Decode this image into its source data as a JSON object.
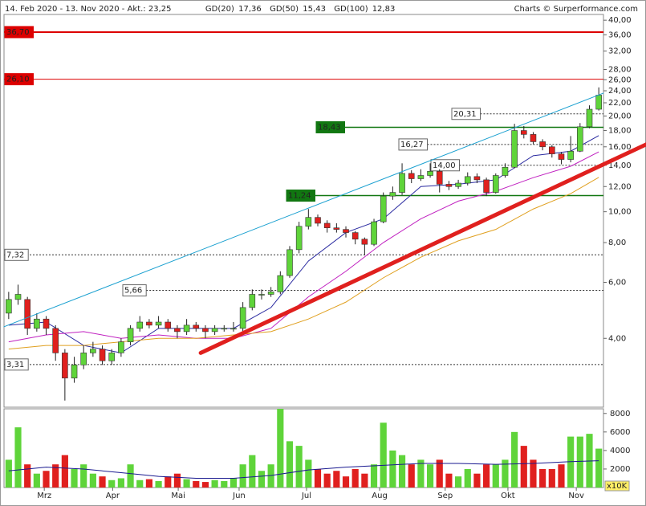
{
  "chart_data": {
    "type": "candlestick",
    "title": "14. Feb 2020 - 13. Nov 2020 - Akt.: 23,25",
    "source": "Charts © Surperformance.com",
    "log_scale": true,
    "grid": false,
    "up_color": "#5fd43a",
    "down_color": "#e0201e",
    "xlim": [
      -0.5,
      63.5
    ],
    "xticks": [
      {
        "value": 3.8,
        "label": "Mrz"
      },
      {
        "value": 11.1,
        "label": "Apr"
      },
      {
        "value": 18.1,
        "label": "Mai"
      },
      {
        "value": 24.6,
        "label": "Jun"
      },
      {
        "value": 31.8,
        "label": "Jul"
      },
      {
        "value": 39.6,
        "label": "Aug"
      },
      {
        "value": 46.6,
        "label": "Sep"
      },
      {
        "value": 53.3,
        "label": "Okt"
      },
      {
        "value": 60.6,
        "label": "Nov"
      }
    ],
    "ylim": [
      2.43,
      41.7
    ],
    "yticks": [
      {
        "value": 40,
        "label": "40,00"
      },
      {
        "value": 36,
        "label": "36,00"
      },
      {
        "value": 32,
        "label": "32,00"
      },
      {
        "value": 28,
        "label": "28,00"
      },
      {
        "value": 26,
        "label": "26,00"
      },
      {
        "value": 24,
        "label": "24,00"
      },
      {
        "value": 22,
        "label": "22,00"
      },
      {
        "value": 20,
        "label": "20,00"
      },
      {
        "value": 18,
        "label": "18,00"
      },
      {
        "value": 16,
        "label": "16,00"
      },
      {
        "value": 14,
        "label": "14,00"
      },
      {
        "value": 12,
        "label": "12,00"
      },
      {
        "value": 10,
        "label": "10,00"
      },
      {
        "value": 8,
        "label": "8,00"
      },
      {
        "value": 6,
        "label": "6,00"
      },
      {
        "value": 4,
        "label": "4,00"
      }
    ],
    "open": [
      4.8,
      5.3,
      5.3,
      4.3,
      4.6,
      4.3,
      3.6,
      3.0,
      3.3,
      3.6,
      3.7,
      3.4,
      3.6,
      3.9,
      4.3,
      4.5,
      4.4,
      4.5,
      4.3,
      4.2,
      4.4,
      4.3,
      4.2,
      4.3,
      4.3,
      4.3,
      5.0,
      5.5,
      5.5,
      5.6,
      6.3,
      7.6,
      9.0,
      9.6,
      9.2,
      8.9,
      8.8,
      8.6,
      8.2,
      7.9,
      9.3,
      11.2,
      11.5,
      13.2,
      12.7,
      13.0,
      13.4,
      12.2,
      12.0,
      12.3,
      12.9,
      12.6,
      11.5,
      13.0,
      13.8,
      18.0,
      17.5,
      16.6,
      16.0,
      15.2,
      14.6,
      15.5,
      18.5,
      21.0
    ],
    "high": [
      5.6,
      5.9,
      5.4,
      4.8,
      4.7,
      4.4,
      3.7,
      3.5,
      3.8,
      3.9,
      3.8,
      3.7,
      4.0,
      4.4,
      4.7,
      4.6,
      4.7,
      4.6,
      4.4,
      4.6,
      4.5,
      4.4,
      4.4,
      4.4,
      4.5,
      5.2,
      5.7,
      5.7,
      5.8,
      6.5,
      7.8,
      9.3,
      10.2,
      9.8,
      9.4,
      9.2,
      9.0,
      8.7,
      8.3,
      9.5,
      11.5,
      12.0,
      14.2,
      13.5,
      13.6,
      14.2,
      13.6,
      12.5,
      12.6,
      13.3,
      13.2,
      12.8,
      13.2,
      14.2,
      18.9,
      18.6,
      17.8,
      16.9,
      16.2,
      15.4,
      17.3,
      19.0,
      21.6,
      24.6
    ],
    "low": [
      4.6,
      5.1,
      4.1,
      4.2,
      4.1,
      3.4,
      2.55,
      2.9,
      3.2,
      3.5,
      3.3,
      3.3,
      3.5,
      3.8,
      4.2,
      4.3,
      4.3,
      4.2,
      4.0,
      4.1,
      4.2,
      4.0,
      4.1,
      4.2,
      4.2,
      4.2,
      4.9,
      5.3,
      5.4,
      5.5,
      6.2,
      7.4,
      8.8,
      9.0,
      8.6,
      8.6,
      8.3,
      7.9,
      7.3,
      7.8,
      9.2,
      10.9,
      11.3,
      12.3,
      12.5,
      12.8,
      11.5,
      11.7,
      11.8,
      12.1,
      12.3,
      11.2,
      11.4,
      12.8,
      13.7,
      17.0,
      16.3,
      15.6,
      14.8,
      14.1,
      14.3,
      15.4,
      18.3,
      20.8
    ],
    "close": [
      5.3,
      5.5,
      4.3,
      4.6,
      4.3,
      3.6,
      3.0,
      3.3,
      3.6,
      3.7,
      3.4,
      3.6,
      3.9,
      4.3,
      4.5,
      4.4,
      4.5,
      4.3,
      4.2,
      4.4,
      4.3,
      4.2,
      4.3,
      4.3,
      4.3,
      5.0,
      5.5,
      5.5,
      5.6,
      6.3,
      7.6,
      9.0,
      9.6,
      9.2,
      8.9,
      8.8,
      8.6,
      8.2,
      7.9,
      9.3,
      11.2,
      11.5,
      13.2,
      12.7,
      13.0,
      13.4,
      12.2,
      12.0,
      12.3,
      12.9,
      12.6,
      11.5,
      13.0,
      13.8,
      18.0,
      17.5,
      16.6,
      16.0,
      15.2,
      14.6,
      15.5,
      18.5,
      21.0,
      23.25
    ],
    "series": [
      {
        "name": "GD(20)",
        "color": "#2a2aa0",
        "last_label": "17,36",
        "x": [
          0,
          4,
          8,
          12,
          16,
          20,
          24,
          28,
          32,
          36,
          40,
          44,
          48,
          52,
          56,
          60,
          63
        ],
        "values": [
          4.4,
          4.5,
          3.8,
          3.6,
          4.3,
          4.3,
          4.3,
          5.0,
          7.0,
          8.6,
          9.5,
          12.0,
          12.2,
          12.6,
          15.0,
          15.5,
          17.36
        ]
      },
      {
        "name": "GD(50)",
        "color": "#c020c0",
        "last_label": "15,43",
        "x": [
          0,
          4,
          8,
          12,
          16,
          20,
          24,
          28,
          32,
          36,
          40,
          44,
          48,
          52,
          56,
          60,
          63
        ],
        "values": [
          3.9,
          4.1,
          4.2,
          4.0,
          4.1,
          4.0,
          4.0,
          4.3,
          5.4,
          6.5,
          8.0,
          9.5,
          10.8,
          11.6,
          12.8,
          13.9,
          15.43
        ]
      },
      {
        "name": "GD(100)",
        "color": "#e0a020",
        "last_label": "12,83",
        "x": [
          0,
          4,
          8,
          12,
          16,
          20,
          24,
          28,
          32,
          36,
          40,
          44,
          48,
          52,
          56,
          60,
          63
        ],
        "values": [
          3.7,
          3.8,
          3.8,
          3.9,
          4.0,
          4.0,
          4.1,
          4.2,
          4.6,
          5.2,
          6.2,
          7.2,
          8.1,
          8.8,
          10.2,
          11.4,
          12.83
        ]
      }
    ],
    "levels": [
      {
        "value": 36.7,
        "label": "36,70",
        "color": "#dd0000",
        "width": 2,
        "dashed": false,
        "boxed": "red"
      },
      {
        "value": 26.1,
        "label": "26,10",
        "color": "#dd0000",
        "width": 1,
        "dashed": false,
        "boxed": "red"
      },
      {
        "value": 20.31,
        "label": "20,31",
        "color": "#333333",
        "width": 1,
        "dashed": true,
        "boxed": "white"
      },
      {
        "value": 18.43,
        "label": "18,43",
        "color": "#117711",
        "width": 1.5,
        "dashed": false,
        "boxed": "green"
      },
      {
        "value": 16.27,
        "label": "16,27",
        "color": "#333333",
        "width": 1,
        "dashed": true,
        "boxed": "white"
      },
      {
        "value": 14,
        "label": "14,00",
        "color": "#333333",
        "width": 1,
        "dashed": true,
        "boxed": "white"
      },
      {
        "value": 11.24,
        "label": "11,24",
        "color": "#117711",
        "width": 1.5,
        "dashed": false,
        "boxed": "green"
      },
      {
        "value": 7.32,
        "label": "7,32",
        "color": "#333333",
        "width": 1,
        "dashed": true,
        "boxed": "white"
      },
      {
        "value": 5.66,
        "label": "5,66",
        "color": "#333333",
        "width": 1,
        "dashed": true,
        "boxed": "white"
      },
      {
        "value": 3.31,
        "label": "3,31",
        "color": "#333333",
        "width": 1,
        "dashed": true,
        "boxed": "white"
      }
    ],
    "trendlines": [
      {
        "color": "#1aa0d0",
        "width": 1,
        "points": [
          {
            "x": -0.5,
            "y": 4.35
          },
          {
            "x": 63.5,
            "y": 23.6
          }
        ]
      },
      {
        "color": "#e0201e",
        "width": 5,
        "points": [
          {
            "x": 20.5,
            "y": 3.6
          },
          {
            "x": 68.1,
            "y": 16.3
          }
        ]
      }
    ],
    "volume": {
      "unit_label": "x10K",
      "ylim": [
        0,
        8500
      ],
      "yticks": [
        2000,
        4000,
        6000,
        8000
      ],
      "values": [
        3000,
        6500,
        2500,
        1500,
        1800,
        2500,
        3500,
        2000,
        2500,
        1500,
        1200,
        800,
        1000,
        2500,
        800,
        900,
        700,
        1200,
        1500,
        900,
        700,
        600,
        800,
        700,
        1000,
        2500,
        3500,
        1800,
        2500,
        8500,
        5000,
        4500,
        3000,
        2000,
        1500,
        1800,
        1200,
        2000,
        1500,
        2500,
        7000,
        4000,
        3500,
        2500,
        3000,
        2500,
        3000,
        1500,
        1200,
        2000,
        1500,
        2500,
        2500,
        3000,
        6000,
        4500,
        3000,
        2000,
        2000,
        2500,
        5500,
        5500,
        5800,
        4200
      ],
      "average": {
        "color": "#1a1a90",
        "x": [
          0,
          4,
          8,
          12,
          16,
          20,
          24,
          28,
          32,
          36,
          40,
          44,
          48,
          52,
          56,
          60,
          63
        ],
        "values": [
          1800,
          2200,
          2000,
          1600,
          1200,
          1000,
          1000,
          1300,
          1900,
          2200,
          2400,
          2600,
          2600,
          2500,
          2600,
          2800,
          2900
        ]
      }
    }
  }
}
